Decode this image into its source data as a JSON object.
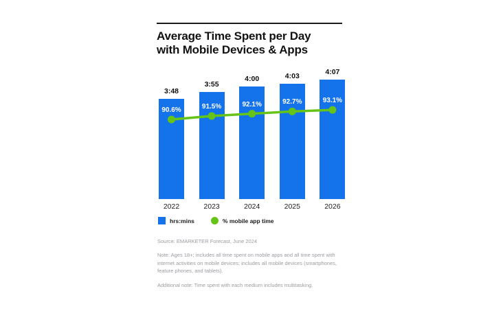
{
  "page": {
    "background": "#FFFFFF"
  },
  "header": {
    "title_line1": "Average Time Spent per Day",
    "title_line2": "with Mobile Devices & Apps"
  },
  "colors": {
    "bar": "#1472EA",
    "line": "#66C418",
    "title": "#121212",
    "rule": "#1A1A1A",
    "value_label": "#0F0F0F",
    "pct_label": "#FFFFFF",
    "tick_label": "#1C1C1C",
    "note_text": "#9B9BA2"
  },
  "chart_data": {
    "type": "bar",
    "subtype": "bar-with-line-overlay",
    "title": "Average Time Spent per Day with Mobile Devices & Apps",
    "categories": [
      "2022",
      "2023",
      "2024",
      "2025",
      "2026"
    ],
    "series": [
      {
        "name": "hrs:mins",
        "type": "bar",
        "labels": [
          "3:48",
          "3:55",
          "4:00",
          "4:03",
          "4:07"
        ],
        "values_minutes": [
          228,
          235,
          240,
          243,
          247
        ]
      },
      {
        "name": "% mobile app time",
        "type": "line",
        "labels": [
          "90.6%",
          "91.5%",
          "92.1%",
          "92.7%",
          "93.1%"
        ],
        "values": [
          90.6,
          91.5,
          92.1,
          92.7,
          93.1
        ]
      }
    ],
    "xlabel": "",
    "ylabel": "",
    "legend_position": "bottom",
    "grid": false,
    "y_axis_visible": false
  },
  "legend": {
    "bar_label": "hrs:mins",
    "line_label": "% mobile app time"
  },
  "footer": {
    "source": "Source: EMARKETER Forecast, June 2024",
    "note": "Note: Ages 18+; includes all time spent on mobile apps and all time spent with internet activities on mobile devices; includes all mobile devices (smartphones, feature phones, and tablets).",
    "additional_note": "Additional note: Time spent with each medium includes multitasking."
  }
}
